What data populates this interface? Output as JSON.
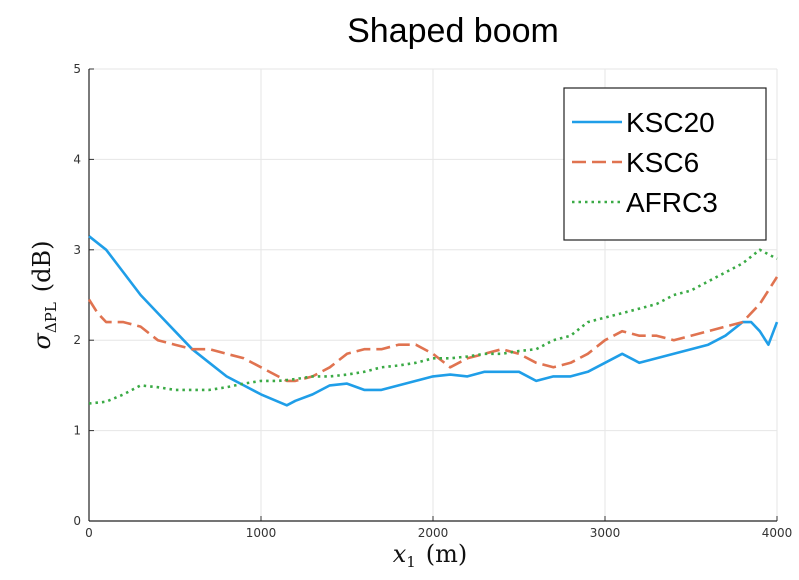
{
  "chart_data": {
    "type": "line",
    "title": "Shaped boom",
    "xlabel": {
      "symbol": "x",
      "subscript": "1",
      "unit": "(m)"
    },
    "ylabel": {
      "symbol": "σ",
      "subscript": "ΔPL",
      "unit": "(dB)"
    },
    "xlim": [
      0,
      4000
    ],
    "ylim": [
      0,
      5
    ],
    "xticks": [
      "0",
      "1000",
      "2000",
      "3000",
      "4000"
    ],
    "yticks": [
      "0",
      "1",
      "2",
      "3",
      "4",
      "5"
    ],
    "grid": true,
    "legend_position": "top-right",
    "series": [
      {
        "name": "KSC20",
        "color": "#1f9ee8",
        "style": "solid",
        "x": [
          0,
          100,
          200,
          300,
          400,
          500,
          600,
          700,
          800,
          900,
          1000,
          1100,
          1150,
          1200,
          1300,
          1400,
          1500,
          1600,
          1700,
          1800,
          1900,
          2000,
          2100,
          2200,
          2300,
          2400,
          2500,
          2600,
          2700,
          2800,
          2900,
          3000,
          3100,
          3200,
          3300,
          3400,
          3500,
          3600,
          3700,
          3800,
          3850,
          3900,
          3950,
          4000
        ],
        "values": [
          3.15,
          3.0,
          2.75,
          2.5,
          2.3,
          2.1,
          1.9,
          1.75,
          1.6,
          1.5,
          1.4,
          1.32,
          1.28,
          1.33,
          1.4,
          1.5,
          1.52,
          1.45,
          1.45,
          1.5,
          1.55,
          1.6,
          1.62,
          1.6,
          1.65,
          1.65,
          1.65,
          1.55,
          1.6,
          1.6,
          1.65,
          1.75,
          1.85,
          1.75,
          1.8,
          1.85,
          1.9,
          1.95,
          2.05,
          2.2,
          2.2,
          2.1,
          1.95,
          2.2
        ]
      },
      {
        "name": "KSC6",
        "color": "#e07350",
        "style": "dashed",
        "x": [
          0,
          50,
          100,
          200,
          300,
          400,
          500,
          600,
          700,
          800,
          900,
          1000,
          1100,
          1150,
          1200,
          1300,
          1400,
          1500,
          1600,
          1700,
          1800,
          1900,
          2000,
          2100,
          2200,
          2300,
          2400,
          2500,
          2600,
          2700,
          2800,
          2900,
          3000,
          3100,
          3200,
          3300,
          3400,
          3500,
          3600,
          3700,
          3800,
          3900,
          4000
        ],
        "values": [
          2.45,
          2.3,
          2.2,
          2.2,
          2.15,
          2.0,
          1.95,
          1.9,
          1.9,
          1.85,
          1.8,
          1.7,
          1.6,
          1.55,
          1.55,
          1.6,
          1.7,
          1.85,
          1.9,
          1.9,
          1.95,
          1.95,
          1.85,
          1.7,
          1.8,
          1.85,
          1.9,
          1.85,
          1.75,
          1.7,
          1.75,
          1.85,
          2.0,
          2.1,
          2.05,
          2.05,
          2.0,
          2.05,
          2.1,
          2.15,
          2.2,
          2.4,
          2.7
        ]
      },
      {
        "name": "AFRC3",
        "color": "#3aaa45",
        "style": "dotted",
        "x": [
          0,
          100,
          200,
          300,
          400,
          500,
          600,
          700,
          800,
          900,
          1000,
          1100,
          1200,
          1300,
          1400,
          1500,
          1600,
          1700,
          1800,
          1900,
          2000,
          2100,
          2200,
          2300,
          2400,
          2500,
          2600,
          2700,
          2800,
          2900,
          3000,
          3100,
          3200,
          3300,
          3400,
          3500,
          3600,
          3700,
          3800,
          3900,
          4000
        ],
        "values": [
          1.3,
          1.32,
          1.4,
          1.5,
          1.48,
          1.45,
          1.45,
          1.45,
          1.48,
          1.52,
          1.55,
          1.55,
          1.57,
          1.6,
          1.6,
          1.62,
          1.65,
          1.7,
          1.72,
          1.75,
          1.8,
          1.8,
          1.82,
          1.85,
          1.85,
          1.88,
          1.9,
          2.0,
          2.05,
          2.2,
          2.25,
          2.3,
          2.35,
          2.4,
          2.5,
          2.55,
          2.65,
          2.75,
          2.85,
          3.0,
          2.9
        ]
      }
    ]
  }
}
